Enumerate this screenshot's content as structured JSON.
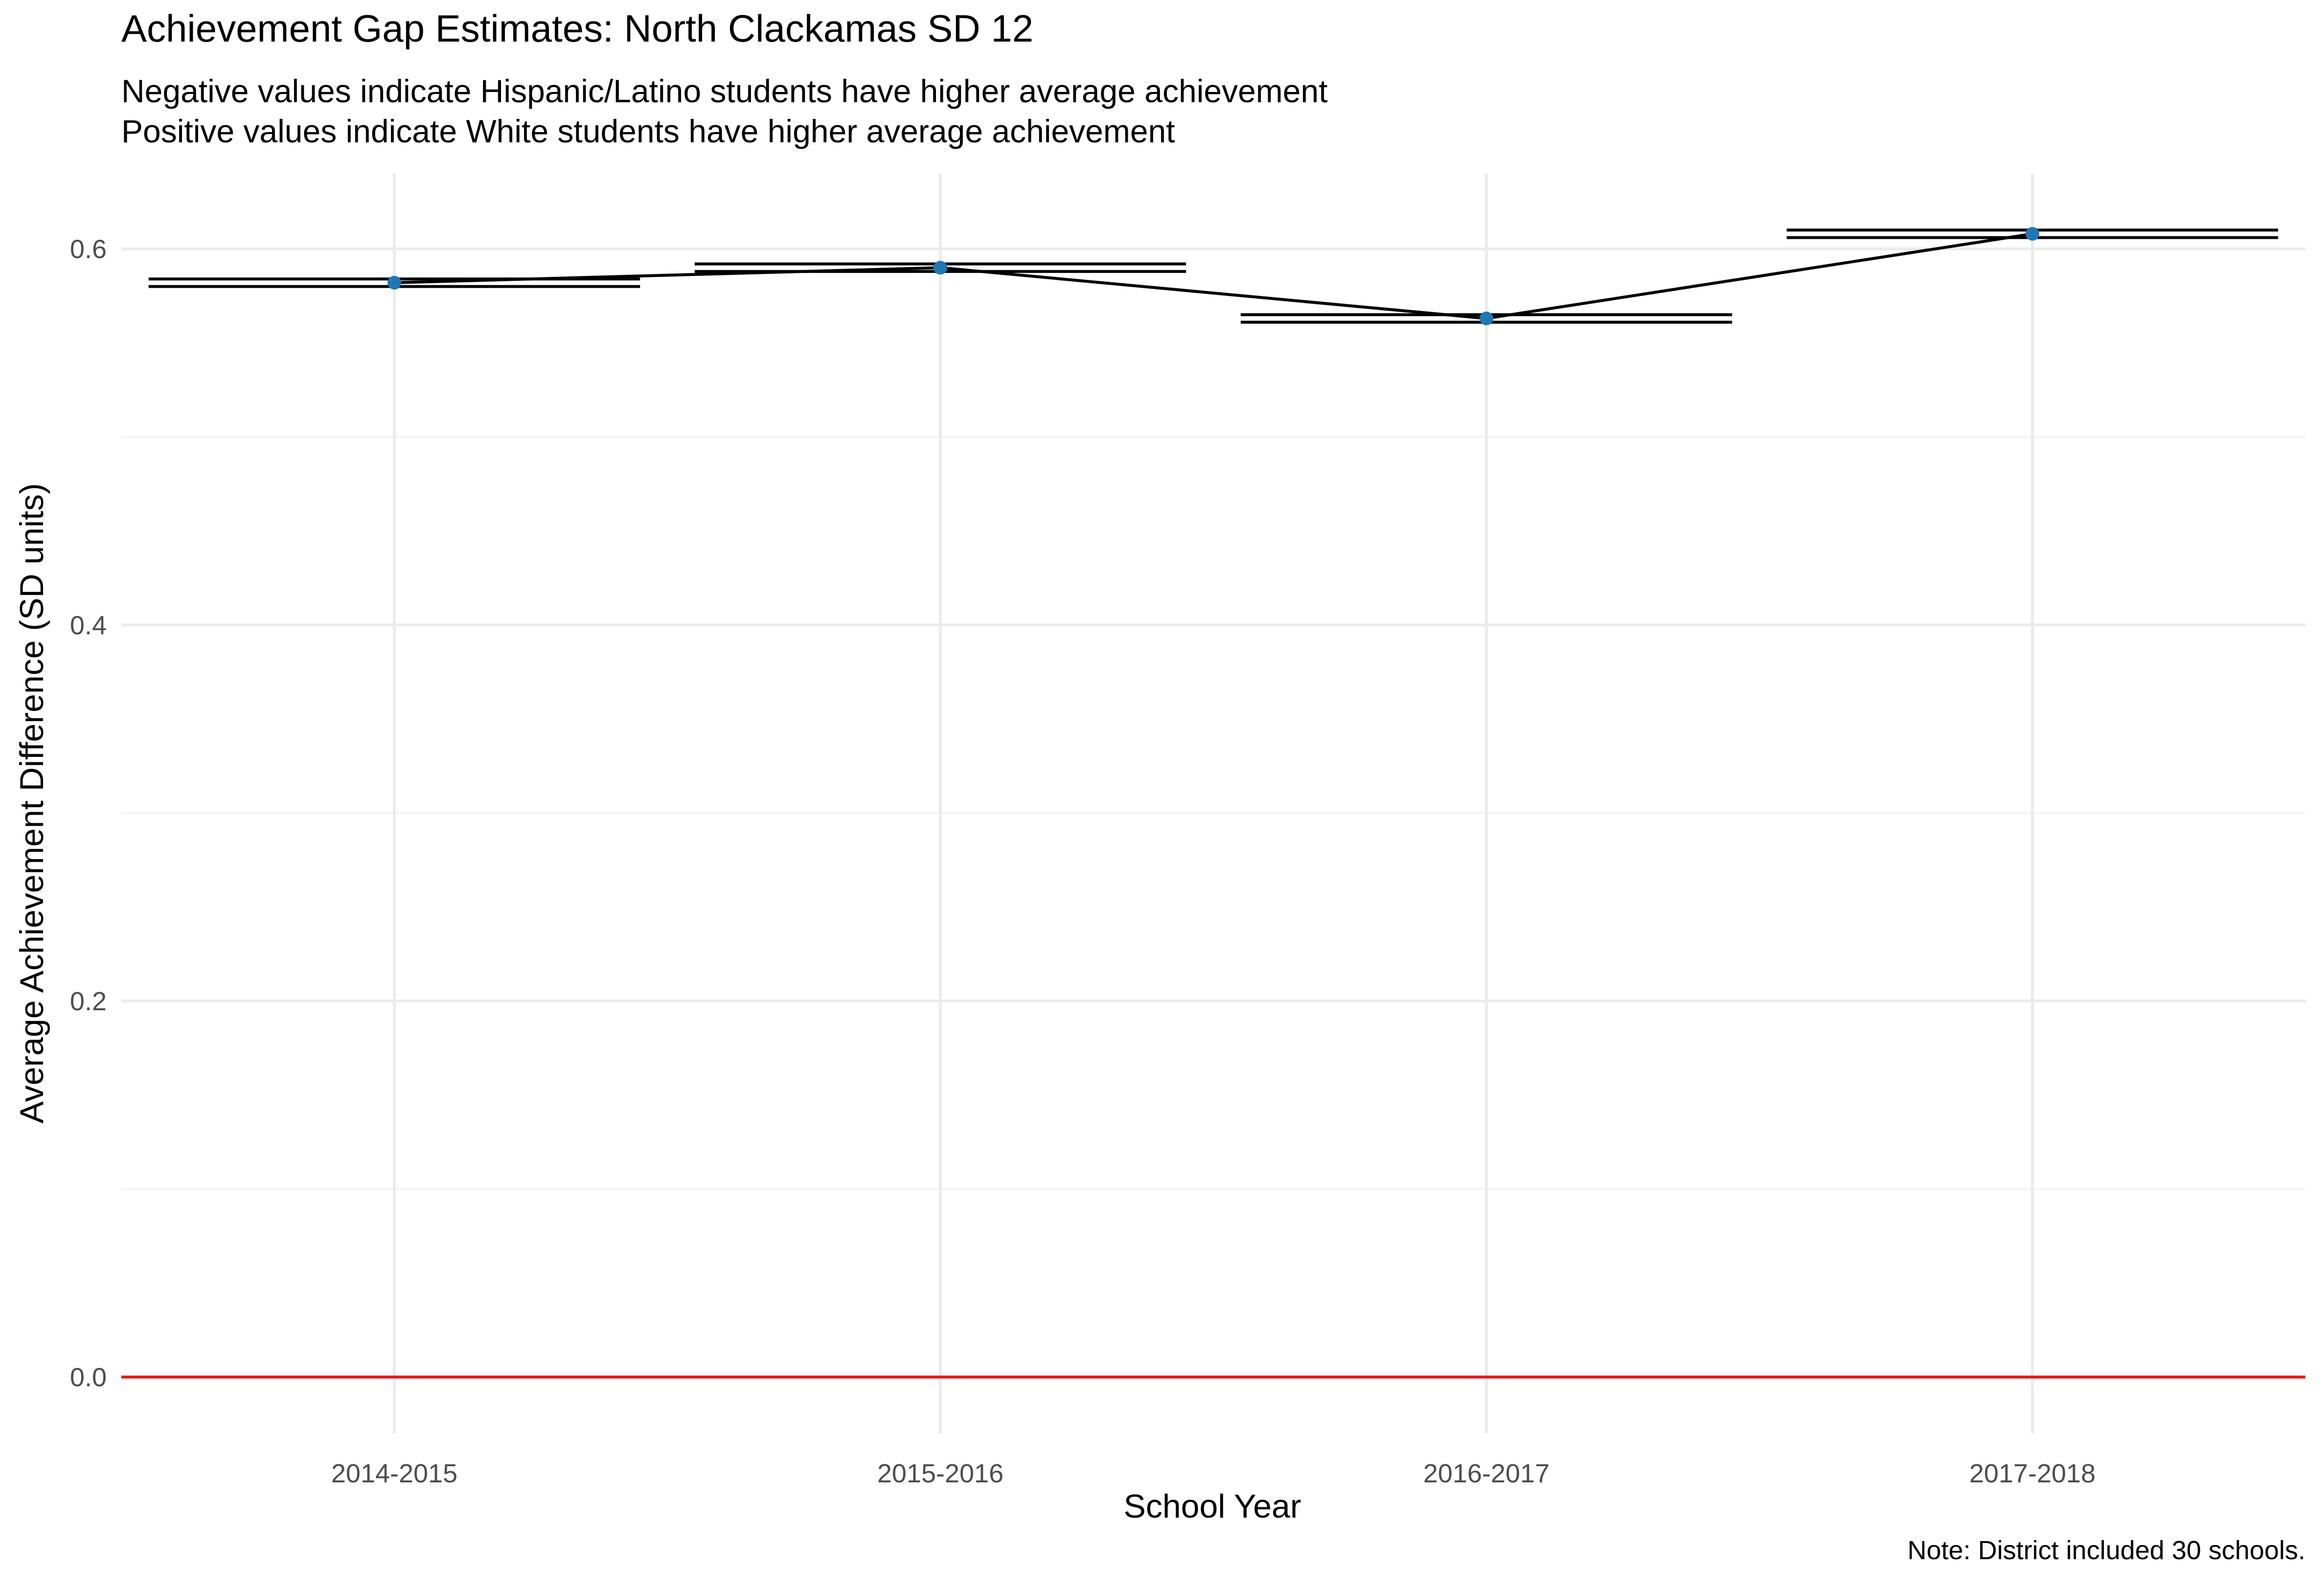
{
  "chart_data": {
    "type": "line",
    "title": "Achievement Gap Estimates: North Clackamas SD 12",
    "subtitle": [
      "Negative values indicate Hispanic/Latino students have higher average achievement",
      "Positive values indicate White students have higher average achievement"
    ],
    "caption": "Note: District included 30 schools.",
    "xlabel": "School Year",
    "ylabel": "Average Achievement Difference (SD units)",
    "categories": [
      "2014-2015",
      "2015-2016",
      "2016-2017",
      "2017-2018"
    ],
    "series": [
      {
        "values": [
          0.582,
          0.59,
          0.563,
          0.608
        ],
        "ci_lower": [
          0.58,
          0.588,
          0.561,
          0.606
        ],
        "ci_upper": [
          0.584,
          0.592,
          0.565,
          0.61
        ]
      }
    ],
    "yticks": [
      0.0,
      0.2,
      0.4,
      0.6
    ],
    "yticks_labels": [
      "0.0",
      "0.2",
      "0.4",
      "0.6"
    ],
    "ylim": [
      -0.03,
      0.64
    ],
    "reference_line": {
      "y": 0,
      "color": "#e31a1c"
    },
    "point_color": "#1f78b4",
    "line_color": "#000000",
    "grid": true,
    "legend": "none"
  }
}
